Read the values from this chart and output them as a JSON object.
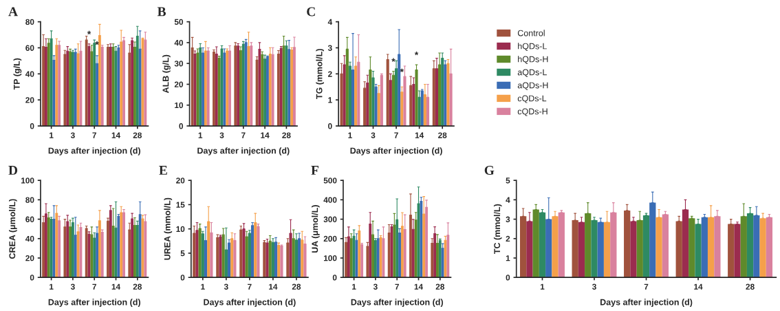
{
  "chart_data": [
    {
      "type": "bar",
      "title": "A",
      "xlabel": "Days after injection (d)",
      "ylabel": "TP (g/L)",
      "categories": [
        "1",
        "3",
        "7",
        "14",
        "28"
      ],
      "ylim": [
        0,
        80
      ],
      "yticks": [
        0,
        20,
        40,
        60,
        80
      ],
      "grid": false,
      "legend": "right",
      "series": [
        {
          "name": "Control",
          "color": "#a0523d",
          "values": [
            61,
            55,
            66,
            60.5,
            56
          ],
          "errors": [
            [
              61,
              70
            ],
            [
              55,
              58
            ],
            [
              66,
              69
            ],
            [
              60.5,
              62.5
            ],
            [
              56,
              62.5
            ]
          ]
        },
        {
          "name": "hQDs-L",
          "color": "#9b2c4f",
          "values": [
            60.5,
            57.5,
            61,
            60.5,
            65.5
          ],
          "errors": [
            [
              60.5,
              67
            ],
            [
              57.5,
              61
            ],
            [
              61,
              63
            ],
            [
              60.5,
              63
            ],
            [
              65.5,
              67.5
            ]
          ]
        },
        {
          "name": "hQDs-H",
          "color": "#5f8a2b",
          "values": [
            63.5,
            57,
            57,
            60.5,
            60.5
          ],
          "errors": [
            [
              63.5,
              67
            ],
            [
              57,
              59
            ],
            [
              57,
              62
            ],
            [
              60.5,
              63
            ],
            [
              60.5,
              64.5
            ]
          ]
        },
        {
          "name": "aQDs-L",
          "color": "#2e8a63",
          "values": [
            67,
            56.5,
            63.5,
            57.5,
            69
          ],
          "errors": [
            [
              67,
              73
            ],
            [
              56.5,
              58
            ],
            [
              63.5,
              66
            ],
            [
              57.5,
              61
            ],
            [
              69,
              76.5
            ]
          ]
        },
        {
          "name": "aQDs-H",
          "color": "#3a6db5",
          "values": [
            50.5,
            56.5,
            48,
            60,
            59
          ],
          "errors": [
            [
              50.5,
              54
            ],
            [
              56.5,
              59
            ],
            [
              48,
              54
            ],
            [
              60,
              62
            ],
            [
              59,
              73
            ]
          ]
        },
        {
          "name": "cQDs-L",
          "color": "#f5a04a",
          "values": [
            62,
            55.5,
            69.5,
            64.5,
            67
          ],
          "errors": [
            [
              62,
              67
            ],
            [
              55.5,
              63
            ],
            [
              69.5,
              78
            ],
            [
              64.5,
              73.5
            ],
            [
              67,
              67.5
            ]
          ]
        },
        {
          "name": "cQDs-H",
          "color": "#d9819e",
          "values": [
            62,
            57.5,
            60.5,
            65.5,
            66
          ],
          "errors": [
            [
              62,
              65
            ],
            [
              57.5,
              65
            ],
            [
              60.5,
              62
            ],
            [
              65.5,
              68
            ],
            [
              66,
              72
            ]
          ]
        }
      ],
      "annotations": [
        {
          "text": "*",
          "x": "7",
          "y": 65
        },
        {
          "text": "*",
          "x": "7",
          "y": 57
        }
      ]
    },
    {
      "type": "bar",
      "title": "B",
      "xlabel": "Days after injection (d)",
      "ylabel": "ALB (g/L)",
      "categories": [
        "1",
        "3",
        "7",
        "14",
        "28"
      ],
      "ylim": [
        0,
        50
      ],
      "yticks": [
        0,
        10,
        20,
        30,
        40,
        50
      ],
      "grid": false,
      "series": [
        {
          "color": "#a0523d",
          "values": [
            37.5,
            35.5,
            38.4,
            31.6,
            34.5
          ],
          "errors": [
            [
              37.5,
              42.5
            ],
            [
              35.5,
              36.5
            ],
            [
              38.4,
              40
            ],
            [
              31.6,
              33.2
            ],
            [
              34.5,
              36.2
            ]
          ]
        },
        {
          "color": "#9b2c4f",
          "values": [
            34.5,
            34.5,
            38.4,
            36.8,
            37.2
          ],
          "errors": [
            [
              34.5,
              36
            ],
            [
              34.5,
              38
            ],
            [
              38.4,
              39.5
            ],
            [
              36.8,
              40
            ],
            [
              37.2,
              38.1
            ]
          ]
        },
        {
          "color": "#5f8a2b",
          "values": [
            35,
            32.5,
            36.2,
            34.3,
            38.4
          ],
          "errors": [
            [
              35,
              37
            ],
            [
              32.5,
              33.5
            ],
            [
              36.2,
              38
            ],
            [
              34.3,
              35.6
            ],
            [
              38.4,
              43.1
            ]
          ]
        },
        {
          "color": "#2e8a63",
          "values": [
            37.5,
            37,
            39.2,
            32.1,
            38.4
          ],
          "errors": [
            [
              37.5,
              39.5
            ],
            [
              37,
              38.5
            ],
            [
              39.2,
              40.5
            ],
            [
              32.1,
              34
            ],
            [
              38.4,
              40.9
            ]
          ]
        },
        {
          "color": "#3a6db5",
          "values": [
            35,
            35,
            40,
            33.2,
            36.7
          ],
          "errors": [
            [
              35,
              37.5
            ],
            [
              35,
              37
            ],
            [
              40,
              41.5
            ],
            [
              33.2,
              33.6
            ],
            [
              36.7,
              41.1
            ]
          ]
        },
        {
          "color": "#f5a04a",
          "values": [
            36,
            36,
            38.1,
            34.5,
            36.5
          ],
          "errors": [
            [
              36,
              40.5
            ],
            [
              36,
              37
            ],
            [
              38.1,
              45
            ],
            [
              34.5,
              37.6
            ],
            [
              36.5,
              37.6
            ]
          ]
        },
        {
          "color": "#d9819e",
          "values": [
            36,
            36,
            38.4,
            34.3,
            37.7
          ],
          "errors": [
            [
              36,
              37.5
            ],
            [
              36,
              38.5
            ],
            [
              38.4,
              40
            ],
            [
              34.3,
              37.6
            ],
            [
              37.7,
              42.6
            ]
          ]
        }
      ]
    },
    {
      "type": "bar",
      "title": "C",
      "xlabel": "Days after injection (d)",
      "ylabel": "TG (mmol/L)",
      "categories": [
        "1",
        "3",
        "7",
        "14",
        "28"
      ],
      "ylim": [
        0,
        4
      ],
      "yticks": [
        0,
        1,
        2,
        3,
        4
      ],
      "grid": false,
      "series": [
        {
          "color": "#a0523d",
          "values": [
            2.0,
            1.45,
            2.55,
            1.55,
            2.2
          ],
          "errors": [
            [
              2.0,
              2.4
            ],
            [
              1.45,
              1.7
            ],
            [
              2.55,
              2.75
            ],
            [
              1.55,
              1.9
            ],
            [
              2.2,
              2.5
            ]
          ]
        },
        {
          "color": "#9b2c4f",
          "values": [
            2.35,
            1.65,
            1.75,
            1.6,
            2.2
          ],
          "errors": [
            [
              2.35,
              2.7
            ],
            [
              1.65,
              1.95
            ],
            [
              1.75,
              2.0
            ],
            [
              1.6,
              1.85
            ],
            [
              2.2,
              2.6
            ]
          ]
        },
        {
          "color": "#5f8a2b",
          "values": [
            2.95,
            2.15,
            1.95,
            2.15,
            2.35
          ],
          "errors": [
            [
              2.95,
              3.4
            ],
            [
              2.15,
              2.65
            ],
            [
              1.95,
              2.1
            ],
            [
              2.15,
              2.35
            ],
            [
              2.35,
              2.8
            ]
          ]
        },
        {
          "color": "#2e8a63",
          "values": [
            2.3,
            1.85,
            2.2,
            1.1,
            2.6
          ],
          "errors": [
            [
              2.3,
              2.45
            ],
            [
              1.85,
              2.1
            ],
            [
              2.2,
              2.5
            ],
            [
              1.1,
              1.35
            ],
            [
              2.6,
              2.8
            ]
          ]
        },
        {
          "color": "#3a6db5",
          "values": [
            2.15,
            1.5,
            2.75,
            1.35,
            2.35
          ],
          "errors": [
            [
              2.15,
              3.55
            ],
            [
              1.5,
              1.6
            ],
            [
              2.75,
              3.7
            ],
            [
              1.35,
              1.4
            ],
            [
              2.35,
              2.5
            ]
          ]
        },
        {
          "color": "#f5a04a",
          "values": [
            2.3,
            1.25,
            1.3,
            1.2,
            2.4
          ],
          "errors": [
            [
              2.3,
              2.65
            ],
            [
              1.25,
              1.55
            ],
            [
              1.3,
              1.5
            ],
            [
              1.2,
              1.6
            ],
            [
              2.4,
              2.55
            ]
          ]
        },
        {
          "color": "#d9819e",
          "values": [
            2.45,
            1.95,
            1.9,
            1.1,
            2.0
          ],
          "errors": [
            [
              2.45,
              3.5
            ],
            [
              1.95,
              2.0
            ],
            [
              1.9,
              2.3
            ],
            [
              1.1,
              1.6
            ],
            [
              2.0,
              2.95
            ]
          ]
        }
      ],
      "annotations": [
        {
          "text": "*",
          "x": "7",
          "y": 2.2
        },
        {
          "text": "*",
          "x": "7",
          "y": 1.8
        },
        {
          "text": "*",
          "x": "14",
          "y": 2.45
        }
      ]
    },
    {
      "type": "bar",
      "title": "D",
      "xlabel": "Days after injection (d)",
      "ylabel": "CREA (μmol/L)",
      "categories": [
        "1",
        "3",
        "7",
        "14",
        "28"
      ],
      "ylim": [
        0,
        100
      ],
      "yticks": [
        0,
        20,
        40,
        60,
        80,
        100
      ],
      "grid": false,
      "series": [
        {
          "color": "#a0523d",
          "values": [
            56.5,
            52,
            50.5,
            58,
            49
          ],
          "errors": [
            [
              56.5,
              63
            ],
            [
              52,
              60
            ],
            [
              50.5,
              53
            ],
            [
              58,
              61
            ],
            [
              49,
              56
            ]
          ]
        },
        {
          "color": "#9b2c4f",
          "values": [
            65.5,
            57.5,
            44.5,
            69,
            60.4
          ],
          "errors": [
            [
              65.5,
              76
            ],
            [
              57.5,
              64
            ],
            [
              44.5,
              47
            ],
            [
              69,
              74
            ],
            [
              60.4,
              66
            ]
          ]
        },
        {
          "color": "#5f8a2b",
          "values": [
            61.5,
            52,
            44,
            53,
            53.7
          ],
          "errors": [
            [
              61.5,
              67
            ],
            [
              52,
              59
            ],
            [
              44,
              52
            ],
            [
              53,
              71
            ],
            [
              53.7,
              61.5
            ]
          ]
        },
        {
          "color": "#2e8a63",
          "values": [
            60,
            56.5,
            40.5,
            51,
            53.7
          ],
          "errors": [
            [
              60,
              62
            ],
            [
              56.5,
              61
            ],
            [
              40.5,
              46
            ],
            [
              51,
              78
            ],
            [
              53.7,
              58
            ]
          ]
        },
        {
          "color": "#3a6db5",
          "values": [
            60,
            43.5,
            45.5,
            63,
            64.8
          ],
          "errors": [
            [
              60,
              74
            ],
            [
              43.5,
              62
            ],
            [
              45.5,
              52
            ],
            [
              63,
              65
            ],
            [
              64.8,
              78
            ]
          ]
        },
        {
          "color": "#f5a04a",
          "values": [
            66,
            47,
            58.5,
            66.7,
            60.4
          ],
          "errors": [
            [
              66,
              74
            ],
            [
              47,
              54
            ],
            [
              58.5,
              69
            ],
            [
              66.7,
              73
            ],
            [
              60.4,
              64
            ]
          ]
        },
        {
          "color": "#d9819e",
          "values": [
            58.5,
            51.5,
            46.5,
            66.7,
            57.6
          ],
          "errors": [
            [
              58.5,
              63
            ],
            [
              51.5,
              56
            ],
            [
              46.5,
              49
            ],
            [
              66.7,
              70
            ],
            [
              57.6,
              64.6
            ]
          ]
        }
      ]
    },
    {
      "type": "bar",
      "title": "E",
      "xlabel": "Days after injection (d)",
      "ylabel": "UREA (mmol/L)",
      "categories": [
        "1",
        "3",
        "7",
        "14",
        "28"
      ],
      "ylim": [
        0,
        20
      ],
      "yticks": [
        0,
        5,
        10,
        15,
        20
      ],
      "grid": false,
      "series": [
        {
          "color": "#a0523d",
          "values": [
            9.1,
            8.2,
            9.8,
            7.2,
            7.1
          ],
          "errors": [
            [
              9.1,
              10.6
            ],
            [
              8.2,
              8.8
            ],
            [
              9.8,
              10.6
            ],
            [
              7.2,
              7.6
            ],
            [
              7.1,
              8.0
            ]
          ]
        },
        {
          "color": "#9b2c4f",
          "values": [
            9.7,
            8.4,
            10.0,
            7.1,
            9.1
          ],
          "errors": [
            [
              9.7,
              11.3
            ],
            [
              8.4,
              8.7
            ],
            [
              10.0,
              11.1
            ],
            [
              7.1,
              7.9
            ],
            [
              9.1,
              11.9
            ]
          ]
        },
        {
          "color": "#5f8a2b",
          "values": [
            10.1,
            8.8,
            8.4,
            7.5,
            8.0
          ],
          "errors": [
            [
              10.1,
              11.0
            ],
            [
              8.8,
              10.1
            ],
            [
              8.4,
              9.5
            ],
            [
              7.5,
              8.6
            ],
            [
              8.0,
              9.8
            ]
          ]
        },
        {
          "color": "#2e8a63",
          "values": [
            9.0,
            5.7,
            9.1,
            7.2,
            7.7
          ],
          "errors": [
            [
              9.0,
              9.5
            ],
            [
              5.7,
              10.2
            ],
            [
              9.1,
              9.7
            ],
            [
              7.2,
              8.0
            ],
            [
              7.7,
              9.0
            ]
          ]
        },
        {
          "color": "#3a6db5",
          "values": [
            7.6,
            7.1,
            10.7,
            7.3,
            8.0
          ],
          "errors": [
            [
              7.6,
              10.4
            ],
            [
              7.1,
              7.8
            ],
            [
              10.7,
              11.3
            ],
            [
              7.3,
              8.2
            ],
            [
              8.0,
              9.1
            ]
          ]
        },
        {
          "color": "#f5a04a",
          "values": [
            11.5,
            8.0,
            11.3,
            6.6,
            7.7
          ],
          "errors": [
            [
              11.5,
              14.6
            ],
            [
              8.0,
              9.2
            ],
            [
              11.3,
              13.2
            ],
            [
              6.6,
              7.1
            ],
            [
              7.7,
              9.5
            ]
          ]
        },
        {
          "color": "#d9819e",
          "values": [
            9.2,
            7.6,
            10.5,
            6.5,
            6.9
          ],
          "errors": [
            [
              9.2,
              11.3
            ],
            [
              7.6,
              9.0
            ],
            [
              10.5,
              11.0
            ],
            [
              6.5,
              6.7
            ],
            [
              6.9,
              8.4
            ]
          ]
        }
      ]
    },
    {
      "type": "bar",
      "title": "F",
      "xlabel": "Days after injection (d)",
      "ylabel": "UA (μmol/L)",
      "categories": [
        "1",
        "3",
        "7",
        "14",
        "28"
      ],
      "ylim": [
        0,
        500
      ],
      "yticks": [
        0,
        100,
        200,
        300,
        400,
        500
      ],
      "grid": false,
      "series": [
        {
          "color": "#a0523d",
          "values": [
            180,
            160,
            229,
            321,
            176
          ],
          "errors": [
            [
              180,
              205
            ],
            [
              160,
              180
            ],
            [
              229,
              272
            ],
            [
              321,
              430
            ],
            [
              176,
              200
            ]
          ]
        },
        {
          "color": "#9b2c4f",
          "values": [
            210,
            275,
            261,
            248,
            226
          ],
          "errors": [
            [
              210,
              260
            ],
            [
              275,
              335
            ],
            [
              261,
              272
            ],
            [
              248,
              299
            ],
            [
              226,
              261
            ]
          ]
        },
        {
          "color": "#5f8a2b",
          "values": [
            200,
            220,
            270,
            296,
            176
          ],
          "errors": [
            [
              200,
              225
            ],
            [
              220,
              290
            ],
            [
              270,
              329
            ],
            [
              296,
              335
            ],
            [
              176,
              221
            ]
          ]
        },
        {
          "color": "#2e8a63",
          "values": [
            212,
            190,
            297,
            380,
            191
          ],
          "errors": [
            [
              212,
              245
            ],
            [
              190,
              200
            ],
            [
              297,
              405
            ],
            [
              380,
              466
            ],
            [
              191,
              198
            ]
          ]
        },
        {
          "color": "#3a6db5",
          "values": [
            191,
            200,
            229,
            392,
            150
          ],
          "errors": [
            [
              191,
              225
            ],
            [
              200,
              245
            ],
            [
              229,
              251
            ],
            [
              392,
              413
            ],
            [
              150,
              174
            ]
          ]
        },
        {
          "color": "#f5a04a",
          "values": [
            240,
            205,
            264,
            327,
            191
          ],
          "errors": [
            [
              240,
              267
            ],
            [
              205,
              215
            ],
            [
              264,
              334
            ],
            [
              327,
              417
            ],
            [
              191,
              212
            ]
          ]
        },
        {
          "color": "#d9819e",
          "values": [
            169,
            200,
            247,
            361,
            218
          ],
          "errors": [
            [
              169,
              176
            ],
            [
              200,
              260
            ],
            [
              247,
              323
            ],
            [
              361,
              398
            ],
            [
              218,
              281
            ]
          ]
        }
      ]
    },
    {
      "type": "bar",
      "title": "G",
      "xlabel": "Days after injection (d)",
      "ylabel": "TC (mmol/L)",
      "categories": [
        "1",
        "3",
        "7",
        "14",
        "28"
      ],
      "ylim": [
        0,
        5
      ],
      "yticks": [
        0,
        1,
        2,
        3,
        4,
        5
      ],
      "grid": false,
      "series": [
        {
          "color": "#a0523d",
          "values": [
            3.15,
            2.95,
            3.45,
            2.9,
            2.75
          ],
          "errors": [
            [
              3.15,
              3.55
            ],
            [
              2.95,
              3.3
            ],
            [
              3.45,
              3.75
            ],
            [
              2.9,
              3.15
            ],
            [
              2.75,
              3.0
            ]
          ]
        },
        {
          "color": "#9b2c4f",
          "values": [
            2.9,
            2.85,
            2.9,
            3.5,
            2.75
          ],
          "errors": [
            [
              2.9,
              3.35
            ],
            [
              2.85,
              3.1
            ],
            [
              2.9,
              3.1
            ],
            [
              3.5,
              4.0
            ],
            [
              2.75,
              2.85
            ]
          ]
        },
        {
          "color": "#5f8a2b",
          "values": [
            3.5,
            3.3,
            2.95,
            3.05,
            3.15
          ],
          "errors": [
            [
              3.5,
              3.75
            ],
            [
              3.3,
              3.85
            ],
            [
              2.95,
              3.4
            ],
            [
              3.05,
              3.15
            ],
            [
              3.15,
              3.8
            ]
          ]
        },
        {
          "color": "#2e8a63",
          "values": [
            3.35,
            2.95,
            3.2,
            2.75,
            3.3
          ],
          "errors": [
            [
              3.35,
              3.5
            ],
            [
              2.95,
              3.1
            ],
            [
              3.2,
              3.3
            ],
            [
              2.75,
              3.0
            ],
            [
              3.3,
              3.6
            ]
          ]
        },
        {
          "color": "#3a6db5",
          "values": [
            3.0,
            2.85,
            3.85,
            3.1,
            3.2
          ],
          "errors": [
            [
              3.0,
              4.1
            ],
            [
              2.85,
              3.05
            ],
            [
              3.85,
              4.4
            ],
            [
              3.1,
              3.25
            ],
            [
              3.2,
              3.65
            ]
          ]
        },
        {
          "color": "#f5a04a",
          "values": [
            3.15,
            2.85,
            3.1,
            3.1,
            3.05
          ],
          "errors": [
            [
              3.15,
              3.4
            ],
            [
              2.85,
              3.4
            ],
            [
              3.1,
              3.5
            ],
            [
              3.1,
              3.7
            ],
            [
              3.05,
              3.3
            ]
          ]
        },
        {
          "color": "#d9819e",
          "values": [
            3.35,
            3.35,
            3.25,
            3.15,
            3.1
          ],
          "errors": [
            [
              3.35,
              3.45
            ],
            [
              3.35,
              3.85
            ],
            [
              3.25,
              3.4
            ],
            [
              3.15,
              3.45
            ],
            [
              3.1,
              3.25
            ]
          ]
        }
      ]
    }
  ]
}
